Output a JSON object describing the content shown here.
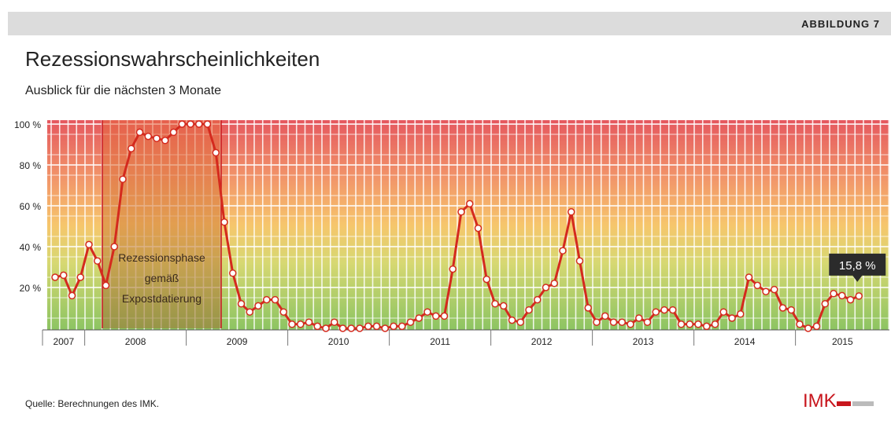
{
  "header": "ABBILDUNG 7",
  "source": "Quelle: Berechnungen des IMK.",
  "logo": "IMK",
  "chart_data": {
    "type": "line",
    "title": "Rezessionswahrscheinlichkeiten",
    "subtitle": "Ausblick für die nächsten 3 Monate",
    "years": [
      "2007",
      "2008",
      "2009",
      "2010",
      "2011",
      "2012",
      "2013",
      "2014",
      "2015"
    ],
    "series": [
      {
        "name": "Rezessionswahrscheinlichkeit",
        "color": "#d42a1e",
        "values": [
          25,
          26,
          16,
          25,
          41,
          33,
          21,
          40,
          73,
          88,
          96,
          94,
          93,
          92,
          96,
          100,
          100,
          100,
          100,
          86,
          52,
          27,
          12,
          8,
          11,
          14,
          14,
          8,
          2,
          2,
          3,
          1,
          0,
          3,
          0,
          0,
          0,
          1,
          1,
          0,
          1,
          1,
          3,
          5,
          8,
          6,
          6,
          29,
          57,
          61,
          49,
          24,
          12,
          11,
          4,
          3,
          9,
          14,
          20,
          22,
          38,
          57,
          33,
          10,
          3,
          6,
          3,
          3,
          2,
          5,
          3,
          8,
          9,
          9,
          2,
          2,
          2,
          1,
          2,
          8,
          5,
          7,
          25,
          21,
          18,
          19,
          10,
          9,
          2,
          0,
          1,
          12,
          17,
          16,
          14,
          15.8
        ],
        "value_labels": [
          null,
          null,
          null,
          null,
          null,
          null,
          null,
          null,
          null,
          null,
          null,
          null,
          null,
          null,
          null,
          null,
          null,
          null,
          null,
          null,
          null,
          null,
          null,
          null,
          null,
          null,
          null,
          null,
          null,
          null,
          null,
          null,
          null,
          null,
          null,
          null,
          null,
          null,
          null,
          null,
          null,
          null,
          null,
          null,
          null,
          null,
          null,
          null,
          null,
          null,
          null,
          null,
          null,
          null,
          null,
          null,
          null,
          null,
          null,
          null,
          null,
          null,
          null,
          null,
          null,
          null,
          null,
          null,
          null,
          null,
          null,
          null,
          null,
          null,
          null,
          null,
          null,
          null,
          null,
          null,
          null,
          null,
          null,
          null,
          null,
          null,
          null,
          null,
          null,
          null,
          null,
          null,
          null,
          null,
          null,
          "15,8 %"
        ]
      }
    ],
    "annotation": [
      "Rezessionsphase",
      "gemäß",
      "Expostdatierung"
    ],
    "ylim": [
      0,
      100
    ],
    "yticks": [
      {
        "value": 20,
        "label": "20 %"
      },
      {
        "value": 40,
        "label": "40 %"
      },
      {
        "value": 60,
        "label": "60 %"
      },
      {
        "value": 80,
        "label": "80 %"
      },
      {
        "value": 100,
        "label": "100 %"
      }
    ],
    "grid": true
  }
}
